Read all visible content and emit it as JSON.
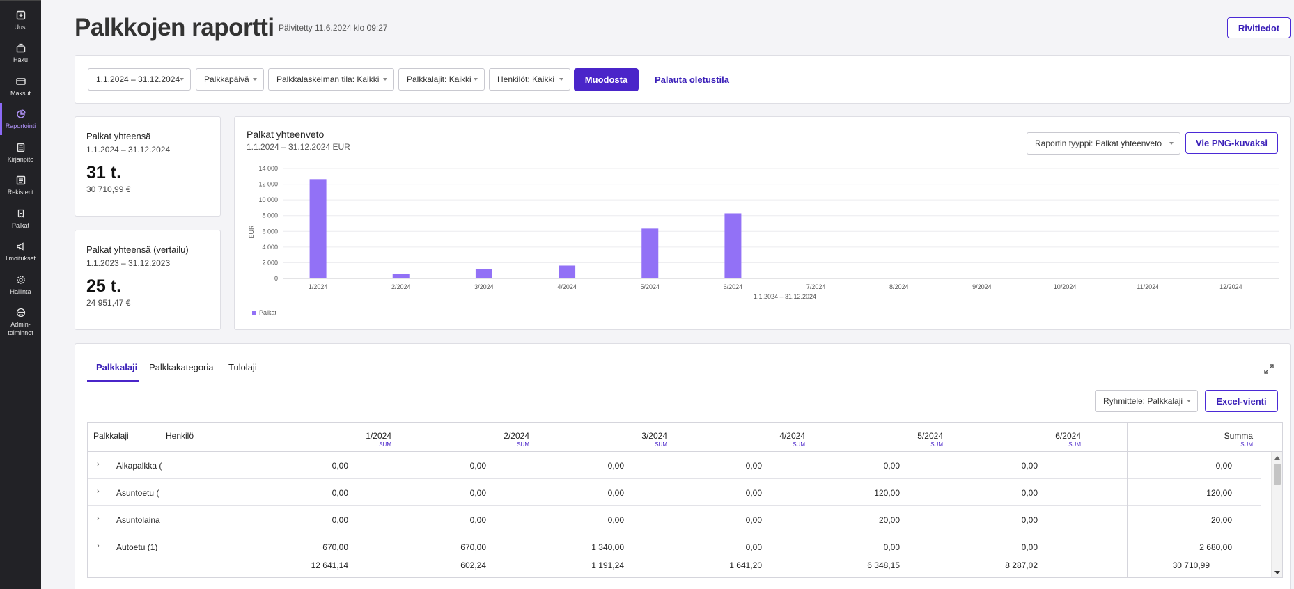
{
  "sidebar": {
    "items": [
      {
        "label": "Uusi",
        "icon": "plus-square-icon",
        "active": false
      },
      {
        "label": "Haku",
        "icon": "archive-icon",
        "active": false
      },
      {
        "label": "Maksut",
        "icon": "credit-card-icon",
        "active": false
      },
      {
        "label": "Raportointi",
        "icon": "pie-chart-icon",
        "active": true
      },
      {
        "label": "Kirjanpito",
        "icon": "calculator-icon",
        "active": false
      },
      {
        "label": "Rekisterit",
        "icon": "register-icon",
        "active": false
      },
      {
        "label": "Palkat",
        "icon": "receipt-icon",
        "active": false
      },
      {
        "label": "Ilmoitukset",
        "icon": "megaphone-icon",
        "active": false
      },
      {
        "label": "Hallinta",
        "icon": "gear-icon",
        "active": false
      },
      {
        "label": "Admin-\ntoiminnot",
        "icon": "admin-icon",
        "active": false
      }
    ]
  },
  "header": {
    "title": "Palkkojen raportti",
    "updated": "Päivitetty 11.6.2024 klo 09:27",
    "details_button": "Rivitiedot"
  },
  "filters": {
    "date_range": "1.1.2024 – 31.12.2024",
    "date_type": "Palkkapäivä",
    "status": "Palkkalaskelman tila: Kaikki",
    "wage_types": "Palkkalajit: Kaikki",
    "persons": "Henkilöt: Kaikki",
    "generate_button": "Muodosta",
    "reset_link": "Palauta oletustila"
  },
  "kpis": [
    {
      "title": "Palkat yhteensä",
      "range": "1.1.2024 – 31.12.2024",
      "big": "31 t.",
      "exact": "30 710,99 €"
    },
    {
      "title": "Palkat yhteensä (vertailu)",
      "range": "1.1.2023 – 31.12.2023",
      "big": "25 t.",
      "exact": "24 951,47 €"
    }
  ],
  "chart_panel": {
    "title": "Palkat yhteenveto",
    "subtitle": "1.1.2024 – 31.12.2024 EUR",
    "report_type_select": "Raportin tyyppi: Palkat yhteenveto",
    "export_button": "Vie PNG-kuvaksi"
  },
  "chart_data": {
    "type": "bar",
    "categories": [
      "1/2024",
      "2/2024",
      "3/2024",
      "4/2024",
      "5/2024",
      "6/2024",
      "7/2024",
      "8/2024",
      "9/2024",
      "10/2024",
      "11/2024",
      "12/2024"
    ],
    "series": [
      {
        "name": "Palkat",
        "values": [
          12641.14,
          602.24,
          1191.24,
          1641.2,
          6348.15,
          8287.02,
          0,
          0,
          0,
          0,
          0,
          0
        ]
      }
    ],
    "ylabel": "EUR",
    "xlabel": "1.1.2024 – 31.12.2024",
    "ylim": [
      0,
      14000
    ],
    "yticks": [
      0,
      2000,
      4000,
      6000,
      8000,
      10000,
      12000,
      14000
    ],
    "ytick_labels": [
      "0",
      "2 000",
      "4 000",
      "6 000",
      "8 000",
      "10 000",
      "12 000",
      "14 000"
    ],
    "grid": true,
    "legend": "bottom-left",
    "color": "#9271f6"
  },
  "table_panel": {
    "tabs": [
      "Palkkalaji",
      "Palkkakategoria",
      "Tulolaji"
    ],
    "active_tab": "Palkkalaji",
    "group_select": "Ryhmittele: Palkkalaji",
    "excel_button": "Excel-vienti",
    "columns": {
      "c0": "Palkkalaji",
      "c1": "Henkilö",
      "months": [
        "1/2024",
        "2/2024",
        "3/2024",
        "4/2024",
        "5/2024",
        "6/2024"
      ],
      "sum": "Summa",
      "agg": "SUM"
    },
    "rows": [
      {
        "name": "Aikapalkka (",
        "values": [
          "0,00",
          "0,00",
          "0,00",
          "0,00",
          "0,00",
          "0,00"
        ],
        "total": "0,00"
      },
      {
        "name": "Asuntoetu (",
        "values": [
          "0,00",
          "0,00",
          "0,00",
          "0,00",
          "120,00",
          "0,00"
        ],
        "total": "120,00"
      },
      {
        "name": "Asuntolaina",
        "values": [
          "0,00",
          "0,00",
          "0,00",
          "0,00",
          "20,00",
          "0,00"
        ],
        "total": "20,00"
      },
      {
        "name": "Autoetu (1)",
        "values": [
          "670,00",
          "670,00",
          "1 340,00",
          "0,00",
          "0,00",
          "0,00"
        ],
        "total": "2 680,00"
      }
    ],
    "totals": [
      "12 641,14",
      "602,24",
      "1 191,24",
      "1 641,20",
      "6 348,15",
      "8 287,02"
    ],
    "grand_total": "30 710,99"
  }
}
